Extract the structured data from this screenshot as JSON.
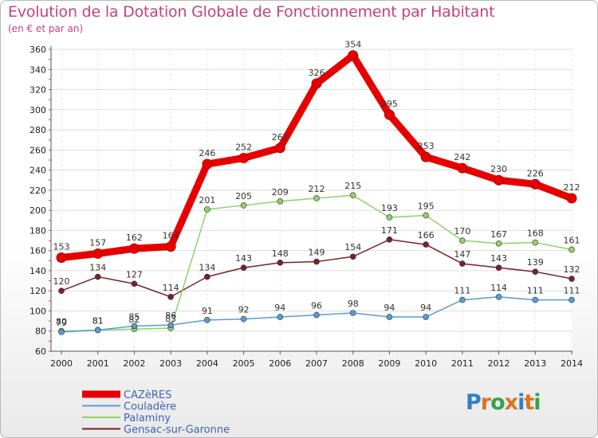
{
  "title": "Evolution de la Dotation Globale de Fonctionnement par Habitant",
  "subtitle": "(en € et par an)",
  "logo": {
    "text": "Proxiti",
    "letters": [
      "P",
      "r",
      "o",
      "x",
      "i",
      "t",
      "i"
    ],
    "colors": [
      "#2f7fc4",
      "#e0731f",
      "#35a24a",
      "#e0731f",
      "#2f7fc4",
      "#e0731f",
      "#35a24a"
    ]
  },
  "chart_data": {
    "type": "line",
    "x": [
      "2000",
      "2001",
      "2002",
      "2003",
      "2004",
      "2005",
      "2006",
      "2007",
      "2008",
      "2009",
      "2010",
      "2011",
      "2012",
      "2013",
      "2014"
    ],
    "ylim": [
      60,
      360
    ],
    "yticks": [
      60,
      80,
      100,
      120,
      140,
      160,
      180,
      200,
      220,
      240,
      260,
      280,
      300,
      320,
      340,
      360
    ],
    "grid": true,
    "legend_position": "bottom-left",
    "series": [
      {
        "name": "CAZèRES",
        "color": "#e60000",
        "values": [
          153,
          157,
          162,
          164,
          246,
          252,
          262,
          326,
          354,
          295,
          253,
          242,
          230,
          226,
          212
        ]
      },
      {
        "name": "Couladère",
        "color": "#5a9bd5",
        "values": [
          79,
          81,
          85,
          86,
          91,
          92,
          94,
          96,
          98,
          94,
          94,
          111,
          114,
          111,
          111
        ]
      },
      {
        "name": "Palaminy",
        "color": "#8fd16b",
        "values": [
          80,
          81,
          82,
          83,
          201,
          205,
          209,
          212,
          215,
          193,
          195,
          170,
          167,
          168,
          161
        ]
      },
      {
        "name": "Gensac-sur-Garonne",
        "color": "#7a1f2e",
        "values": [
          120,
          134,
          127,
          114,
          134,
          143,
          148,
          149,
          154,
          171,
          166,
          147,
          143,
          139,
          132
        ]
      }
    ]
  }
}
